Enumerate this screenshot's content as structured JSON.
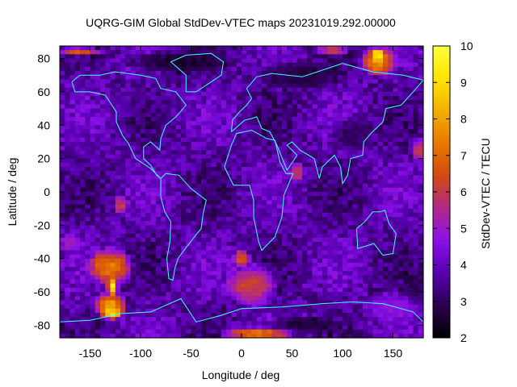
{
  "chart_data": {
    "type": "heatmap",
    "title": "UQRG-GIM Global StdDev-VTEC maps 20231019.292.00000",
    "xlabel": "Longitude / deg",
    "ylabel": "Latitude / deg",
    "colorbar_label": "StdDev-VTEC / TECU",
    "xlim": [
      -180,
      180
    ],
    "ylim": [
      -87.5,
      87.5
    ],
    "zlim": [
      2,
      10
    ],
    "x_ticks": [
      -150,
      -100,
      -50,
      0,
      50,
      100,
      150
    ],
    "y_ticks": [
      -80,
      -60,
      -40,
      -20,
      0,
      20,
      40,
      60,
      80
    ],
    "z_ticks": [
      2,
      3,
      4,
      5,
      6,
      7,
      8,
      9,
      10
    ],
    "grid": false,
    "colormap": [
      "#000000",
      "#2a0050",
      "#5800b0",
      "#8a10e8",
      "#b0288a",
      "#d24a10",
      "#e87800",
      "#f2b000",
      "#ffe400",
      "#ffff40"
    ],
    "overlay_color": "#40ffff",
    "x_step_deg": 5,
    "y_step_deg": 2.5,
    "hotspots": [
      {
        "lon": -130,
        "lat": -45,
        "rlon": 25,
        "rlat": 12,
        "value": 7.4
      },
      {
        "lon": -130,
        "lat": -68,
        "rlon": 18,
        "rlat": 8,
        "value": 8.0
      },
      {
        "lon": -128,
        "lat": -57,
        "rlon": 6,
        "rlat": 6,
        "value": 9.2
      },
      {
        "lon": -128,
        "lat": -73,
        "rlon": 12,
        "rlat": 4,
        "value": 9.0
      },
      {
        "lon": 10,
        "lat": -56,
        "rlon": 28,
        "rlat": 14,
        "value": 6.3
      },
      {
        "lon": 0,
        "lat": -40,
        "rlon": 10,
        "rlat": 6,
        "value": 6.8
      },
      {
        "lon": 15,
        "lat": -85,
        "rlon": 40,
        "rlat": 4,
        "value": 7.3
      },
      {
        "lon": 135,
        "lat": 78,
        "rlon": 20,
        "rlat": 10,
        "value": 7.6
      },
      {
        "lon": 135,
        "lat": 82,
        "rlon": 8,
        "rlat": 4,
        "value": 9.4
      },
      {
        "lon": -160,
        "lat": 84,
        "rlon": 25,
        "rlat": 3,
        "value": 6.6
      },
      {
        "lon": 90,
        "lat": 85,
        "rlon": 20,
        "rlat": 3,
        "value": 6.4
      },
      {
        "lon": -120,
        "lat": -8,
        "rlon": 8,
        "rlat": 6,
        "value": 6.1
      },
      {
        "lon": 55,
        "lat": 12,
        "rlon": 10,
        "rlat": 6,
        "value": 6.1
      },
      {
        "lon": 175,
        "lat": 25,
        "rlon": 8,
        "rlat": 8,
        "value": 6.0
      },
      {
        "lon": -170,
        "lat": -30,
        "rlon": 12,
        "rlat": 6,
        "value": 5.2
      },
      {
        "lon": 150,
        "lat": -70,
        "rlon": 35,
        "rlat": 10,
        "value": 4.8
      }
    ],
    "low_zones": [
      {
        "lon": -60,
        "lat": 78,
        "rlon": 60,
        "rlat": 8,
        "value": 2.5
      },
      {
        "lon": 60,
        "lat": 70,
        "rlon": 50,
        "rlat": 10,
        "value": 2.7
      },
      {
        "lon": 110,
        "lat": 35,
        "rlon": 25,
        "rlat": 12,
        "value": 2.9
      },
      {
        "lon": 60,
        "lat": -80,
        "rlon": 40,
        "rlat": 6,
        "value": 2.6
      },
      {
        "lon": 170,
        "lat": -60,
        "rlon": 15,
        "rlat": 15,
        "value": 2.9
      }
    ]
  }
}
